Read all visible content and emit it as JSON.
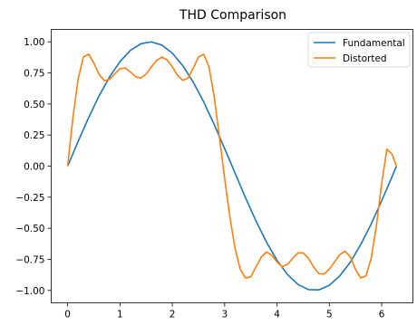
{
  "chart_data": {
    "type": "line",
    "title": "THD Comparison",
    "xlabel": "",
    "ylabel": "",
    "xlim": [
      -0.314,
      6.597
    ],
    "ylim": [
      -1.1,
      1.1
    ],
    "x_ticks": [
      0,
      1,
      2,
      3,
      4,
      5,
      6
    ],
    "y_ticks": [
      1.0,
      0.75,
      0.5,
      0.25,
      0.0,
      -0.25,
      -0.5,
      -0.75,
      -1.0
    ],
    "x_tick_labels": [
      "0",
      "1",
      "2",
      "3",
      "4",
      "5",
      "6"
    ],
    "y_tick_labels": [
      "1.00",
      "0.75",
      "0.50",
      "0.25",
      "0.00",
      "−0.25",
      "−0.50",
      "−0.75",
      "−1.00"
    ],
    "grid": false,
    "legend_position": "top-right",
    "series": [
      {
        "name": "Fundamental",
        "color": "#1f77b4",
        "x": [
          0,
          0.2,
          0.4,
          0.6,
          0.8,
          1.0,
          1.2,
          1.4,
          1.6,
          1.8,
          2.0,
          2.2,
          2.4,
          2.6,
          2.8,
          3.0,
          3.2,
          3.4,
          3.6,
          3.8,
          4.0,
          4.2,
          4.4,
          4.6,
          4.8,
          5.0,
          5.2,
          5.4,
          5.6,
          5.8,
          6.0,
          6.2,
          6.283
        ],
        "y": [
          0.0,
          0.199,
          0.389,
          0.565,
          0.717,
          0.841,
          0.932,
          0.985,
          1.0,
          0.974,
          0.909,
          0.808,
          0.675,
          0.516,
          0.335,
          0.141,
          -0.058,
          -0.256,
          -0.443,
          -0.612,
          -0.757,
          -0.872,
          -0.952,
          -0.994,
          -0.996,
          -0.959,
          -0.883,
          -0.773,
          -0.631,
          -0.465,
          -0.279,
          -0.083,
          0.0
        ]
      },
      {
        "name": "Distorted",
        "color": "#ff7f0e",
        "x": [
          0,
          0.1,
          0.2,
          0.3,
          0.4,
          0.5,
          0.6,
          0.7,
          0.8,
          0.9,
          1.0,
          1.1,
          1.2,
          1.3,
          1.4,
          1.5,
          1.6,
          1.7,
          1.8,
          1.9,
          2.0,
          2.1,
          2.2,
          2.3,
          2.4,
          2.5,
          2.6,
          2.7,
          2.8,
          2.9,
          3.0,
          3.1,
          3.2,
          3.3,
          3.4,
          3.5,
          3.6,
          3.7,
          3.8,
          3.9,
          4.0,
          4.1,
          4.2,
          4.3,
          4.4,
          4.5,
          4.6,
          4.7,
          4.8,
          4.9,
          5.0,
          5.1,
          5.2,
          5.3,
          5.4,
          5.5,
          5.6,
          5.7,
          5.8,
          5.9,
          6.0,
          6.1,
          6.2,
          6.283
        ],
        "y": [
          0.0,
          0.388,
          0.701,
          0.877,
          0.901,
          0.829,
          0.738,
          0.688,
          0.698,
          0.743,
          0.784,
          0.789,
          0.757,
          0.719,
          0.709,
          0.741,
          0.799,
          0.85,
          0.877,
          0.855,
          0.799,
          0.73,
          0.69,
          0.709,
          0.789,
          0.878,
          0.9,
          0.799,
          0.559,
          0.231,
          -0.099,
          -0.411,
          -0.666,
          -0.833,
          -0.901,
          -0.89,
          -0.81,
          -0.731,
          -0.691,
          -0.717,
          -0.771,
          -0.811,
          -0.79,
          -0.742,
          -0.699,
          -0.698,
          -0.742,
          -0.812,
          -0.866,
          -0.868,
          -0.829,
          -0.771,
          -0.711,
          -0.685,
          -0.73,
          -0.831,
          -0.9,
          -0.883,
          -0.741,
          -0.478,
          -0.137,
          0.137,
          0.094,
          0.0
        ]
      }
    ]
  }
}
